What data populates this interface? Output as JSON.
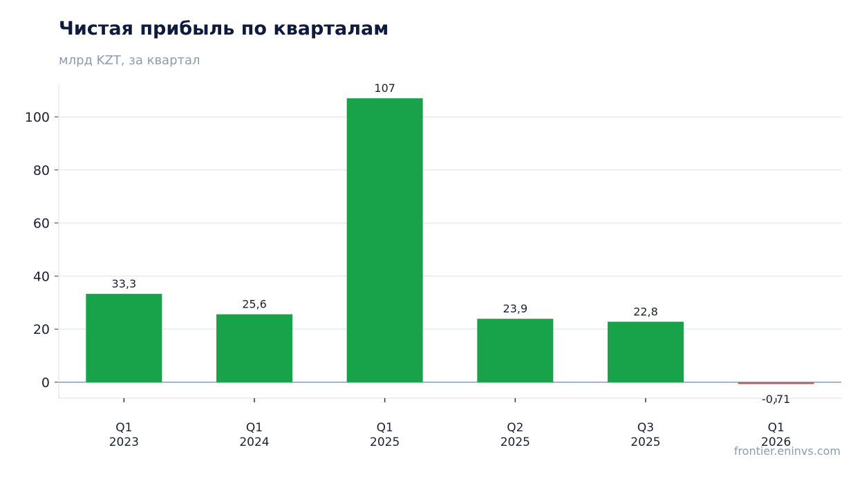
{
  "header": {
    "title": "Чистая прибыль по кварталам",
    "subtitle": "млрд KZT, за квартал"
  },
  "footer": {
    "watermark": "frontier.eninvs.com"
  },
  "colors": {
    "positive": "#18a34a",
    "negative": "#e05252",
    "grid": "#e6e9ee",
    "baseline": "#8a9aae"
  },
  "chart_data": {
    "type": "bar",
    "title": "Чистая прибыль по кварталам",
    "subtitle": "млрд KZT, за квартал",
    "categories": [
      [
        "Q1",
        "2023"
      ],
      [
        "Q1",
        "2024"
      ],
      [
        "Q1",
        "2025"
      ],
      [
        "Q2",
        "2025"
      ],
      [
        "Q3",
        "2025"
      ],
      [
        "Q1",
        "2026"
      ]
    ],
    "values": [
      33.3,
      25.6,
      107,
      23.9,
      22.8,
      -0.71
    ],
    "data_labels": [
      "33,3",
      "25,6",
      "107",
      "23,9",
      "22,8",
      "-0,71"
    ],
    "y_ticks": [
      0,
      20,
      40,
      60,
      80,
      100
    ],
    "ylim": [
      -6,
      112
    ],
    "grid": true,
    "legend": "none"
  }
}
